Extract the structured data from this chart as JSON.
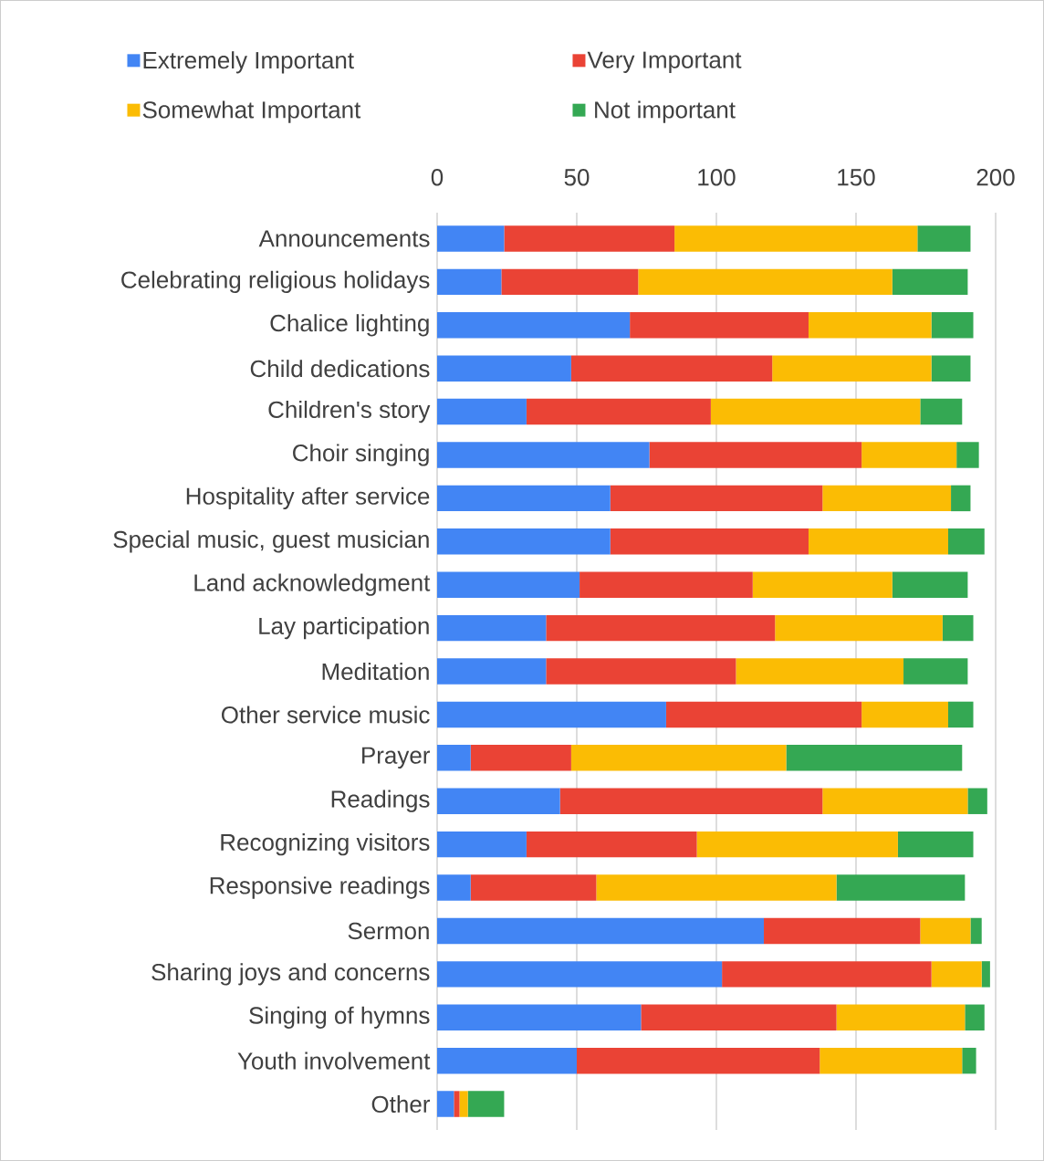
{
  "chart_data": {
    "type": "bar",
    "orientation": "horizontal",
    "stacked": true,
    "categories": [
      "Announcements",
      "Celebrating religious holidays",
      "Chalice lighting",
      "Child dedications",
      "Children's story",
      "Choir singing",
      "Hospitality after service",
      "Special music, guest musician",
      "Land acknowledgment",
      "Lay participation",
      "Meditation",
      "Other service music",
      "Prayer",
      "Readings",
      "Recognizing visitors",
      "Responsive readings",
      "Sermon",
      "Sharing joys and concerns",
      "Singing of hymns",
      "Youth involvement",
      "Other"
    ],
    "series": [
      {
        "name": "Extremely Important",
        "color": "#4285f4",
        "values": [
          24,
          23,
          69,
          48,
          32,
          76,
          62,
          62,
          51,
          39,
          39,
          82,
          12,
          44,
          32,
          12,
          117,
          102,
          73,
          50,
          6
        ]
      },
      {
        "name": "Very Important",
        "color": "#ea4335",
        "values": [
          61,
          49,
          64,
          72,
          66,
          76,
          76,
          71,
          62,
          82,
          68,
          70,
          36,
          94,
          61,
          45,
          56,
          75,
          70,
          87,
          2
        ]
      },
      {
        "name": "Somewhat Important",
        "color": "#fbbc04",
        "values": [
          87,
          91,
          44,
          57,
          75,
          34,
          46,
          50,
          50,
          60,
          60,
          31,
          77,
          52,
          72,
          86,
          18,
          18,
          46,
          51,
          3
        ]
      },
      {
        "name": "Not important",
        "color": "#34a853",
        "values": [
          19,
          27,
          15,
          14,
          15,
          8,
          7,
          13,
          27,
          11,
          23,
          9,
          63,
          7,
          27,
          46,
          4,
          3,
          7,
          5,
          13
        ]
      }
    ],
    "xlim": [
      0,
      200
    ],
    "xticks": [
      0,
      50,
      100,
      150,
      200
    ],
    "grid": "x",
    "legend": "top"
  }
}
